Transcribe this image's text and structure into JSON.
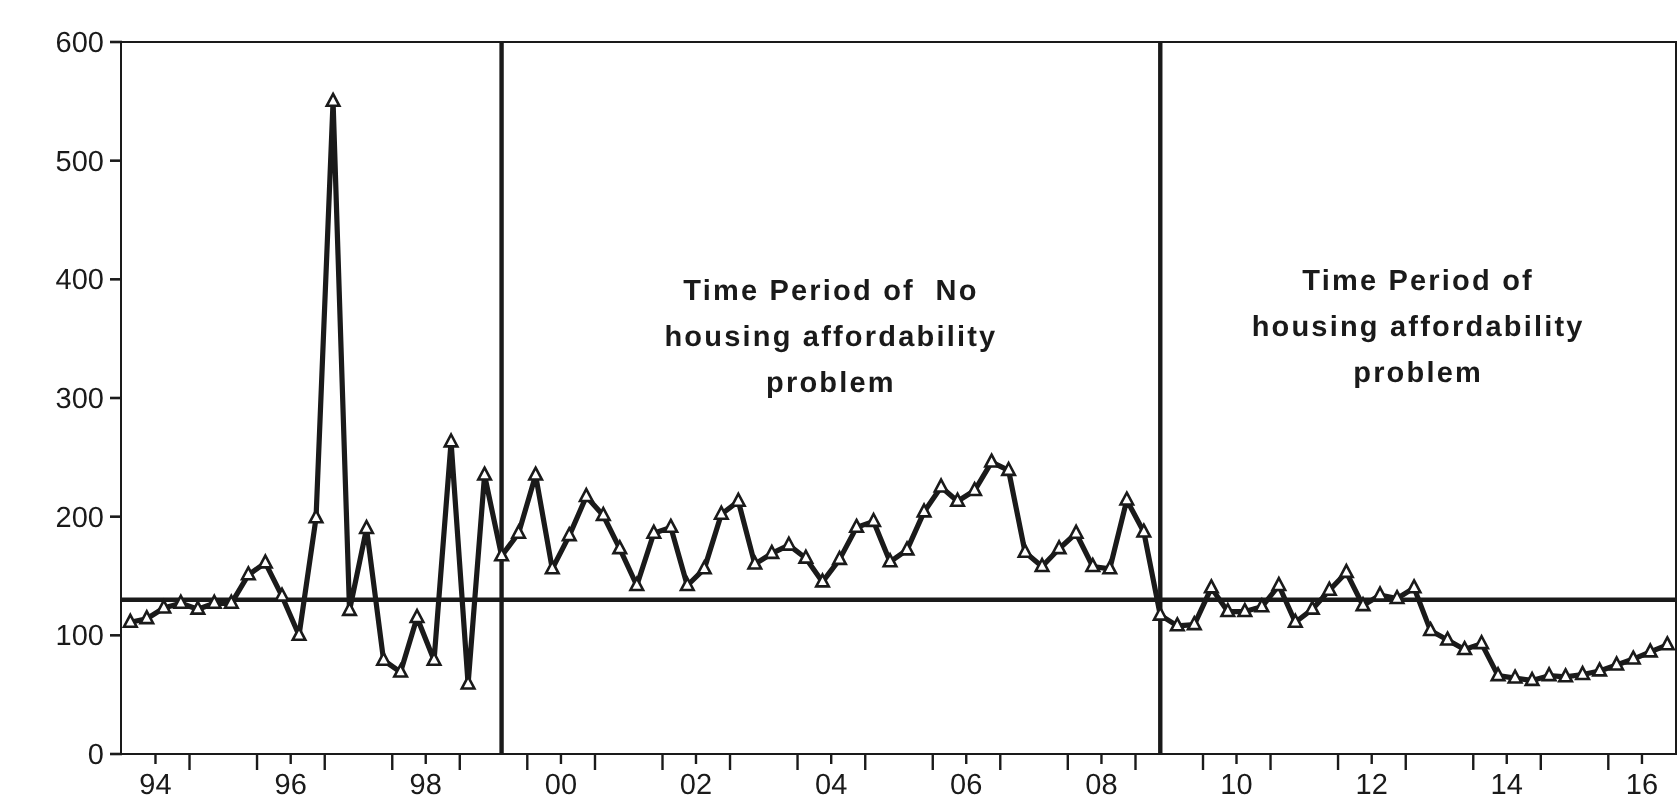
{
  "chart_data": {
    "type": "line",
    "x": [
      "1994-02-15",
      "1994-05-15",
      "1994-08-15",
      "1994-11-15",
      "1995-02-15",
      "1995-05-15",
      "1995-08-15",
      "1995-11-15",
      "1996-02-15",
      "1996-05-15",
      "1996-08-15",
      "1996-11-15",
      "1997-02-15",
      "1997-05-15",
      "1997-08-15",
      "1997-11-15",
      "1998-02-15",
      "1998-05-15",
      "1998-08-15",
      "1998-11-15",
      "1999-02-15",
      "1999-05-15",
      "1999-08-15",
      "1999-11-15",
      "2000-02-15",
      "2000-05-15",
      "2000-08-15",
      "2000-11-15",
      "2001-02-15",
      "2001-05-15",
      "2001-08-15",
      "2001-11-15",
      "2002-02-15",
      "2002-05-15",
      "2002-08-15",
      "2002-11-15",
      "2003-02-15",
      "2003-05-15",
      "2003-08-15",
      "2003-11-15",
      "2004-02-15",
      "2004-05-15",
      "2004-08-15",
      "2004-11-15",
      "2005-02-15",
      "2005-05-15",
      "2005-08-15",
      "2005-11-15",
      "2006-02-15",
      "2006-05-15",
      "2006-08-15",
      "2006-11-15",
      "2007-02-15",
      "2007-05-15",
      "2007-08-15",
      "2007-11-15",
      "2008-02-15",
      "2008-05-15",
      "2008-08-15",
      "2008-11-15",
      "2009-02-15",
      "2009-05-15",
      "2009-08-15",
      "2009-11-15",
      "2010-02-15",
      "2010-05-15",
      "2010-08-15",
      "2010-11-15",
      "2011-02-15",
      "2011-05-15",
      "2011-08-15",
      "2011-11-15",
      "2012-02-15",
      "2012-05-15",
      "2012-08-15",
      "2012-11-15",
      "2013-02-15",
      "2013-05-15",
      "2013-08-15",
      "2013-11-15",
      "2014-02-15",
      "2014-05-15",
      "2014-08-15",
      "2014-11-15",
      "2015-02-15",
      "2015-05-15",
      "2015-08-15",
      "2015-11-15",
      "2016-02-15",
      "2016-05-15",
      "2016-08-15",
      "2016-11-15"
    ],
    "series": [
      {
        "color": "#1a1a1a",
        "values": [
          111,
          114,
          123,
          127,
          122,
          127,
          127,
          151,
          161,
          133,
          100,
          199,
          550,
          121,
          190,
          79,
          69,
          115,
          79,
          263,
          59,
          235,
          167,
          186,
          235,
          156,
          184,
          217,
          201,
          173,
          142,
          186,
          191,
          142,
          156,
          202,
          213,
          160,
          169,
          176,
          165,
          145,
          164,
          191,
          196,
          162,
          172,
          204,
          225,
          213,
          222,
          246,
          239,
          170,
          158,
          173,
          186,
          158,
          156,
          214,
          187,
          117,
          108,
          109,
          140,
          120,
          120,
          124,
          142,
          111,
          122,
          138,
          153,
          125,
          134,
          131,
          140,
          104,
          96,
          88,
          93,
          66,
          64,
          62,
          66,
          65,
          67,
          70,
          75,
          80,
          86,
          92
        ]
      }
    ],
    "marker": "triangle",
    "line_style": "solid",
    "grid": false,
    "xlim": [
      "1994-01-01",
      "2017-01-01"
    ],
    "xticks": [
      {
        "value": "1994-07-01",
        "label": "94"
      },
      {
        "value": "1995-01-01",
        "label": null
      },
      {
        "value": "1996-01-01",
        "label": null
      },
      {
        "value": "1996-07-01",
        "label": "96"
      },
      {
        "value": "1997-01-01",
        "label": null
      },
      {
        "value": "1998-01-01",
        "label": null
      },
      {
        "value": "1998-07-01",
        "label": "98"
      },
      {
        "value": "1999-01-01",
        "label": null
      },
      {
        "value": "2000-01-01",
        "label": null
      },
      {
        "value": "2000-07-01",
        "label": "00"
      },
      {
        "value": "2001-01-01",
        "label": null
      },
      {
        "value": "2002-01-01",
        "label": null
      },
      {
        "value": "2002-07-01",
        "label": "02"
      },
      {
        "value": "2003-01-01",
        "label": null
      },
      {
        "value": "2004-01-01",
        "label": null
      },
      {
        "value": "2004-07-01",
        "label": "04"
      },
      {
        "value": "2005-01-01",
        "label": null
      },
      {
        "value": "2006-01-01",
        "label": null
      },
      {
        "value": "2006-07-01",
        "label": "06"
      },
      {
        "value": "2007-01-01",
        "label": null
      },
      {
        "value": "2008-01-01",
        "label": null
      },
      {
        "value": "2008-07-01",
        "label": "08"
      },
      {
        "value": "2009-01-01",
        "label": null
      },
      {
        "value": "2010-01-01",
        "label": null
      },
      {
        "value": "2010-07-01",
        "label": "10"
      },
      {
        "value": "2011-01-01",
        "label": null
      },
      {
        "value": "2012-01-01",
        "label": null
      },
      {
        "value": "2012-07-01",
        "label": "12"
      },
      {
        "value": "2013-01-01",
        "label": null
      },
      {
        "value": "2014-01-01",
        "label": null
      },
      {
        "value": "2014-07-01",
        "label": "14"
      },
      {
        "value": "2015-01-01",
        "label": null
      },
      {
        "value": "2016-01-01",
        "label": null
      },
      {
        "value": "2016-07-01",
        "label": "16"
      }
    ],
    "ylim": [
      0,
      600
    ],
    "yticks": [
      0,
      100,
      200,
      300,
      400,
      500,
      600
    ],
    "ref_lines": [
      {
        "axis": "y",
        "value": 130,
        "color": "#1a1a1a"
      },
      {
        "axis": "x",
        "value": "1999-08-15",
        "color": "#1a1a1a"
      },
      {
        "axis": "x",
        "value": "2009-05-15",
        "color": "#1a1a1a"
      }
    ],
    "annotations": [
      "Time Period of  No\nhousing affordability\nproblem",
      "Time Period of\nhousing affordability\nproblem"
    ]
  }
}
